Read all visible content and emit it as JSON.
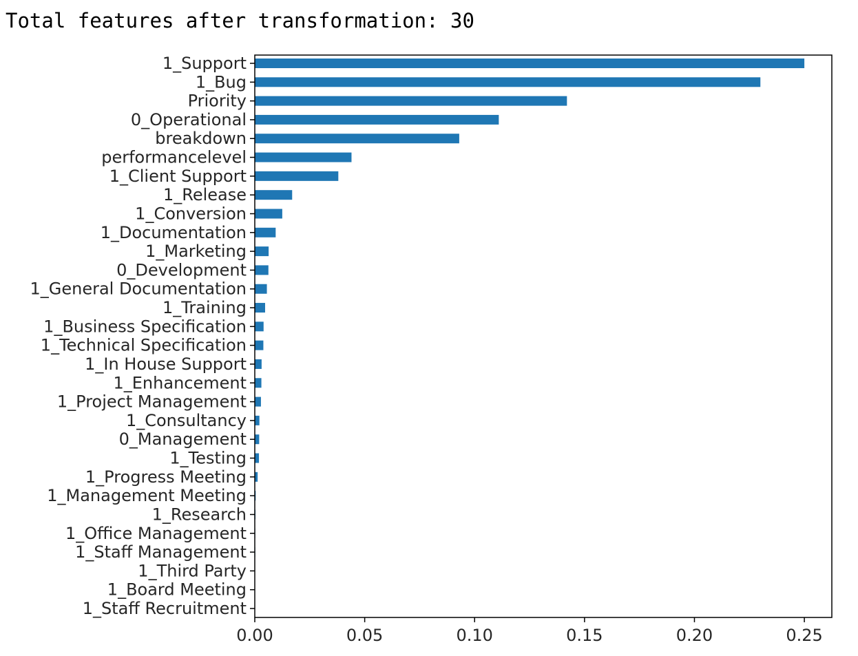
{
  "output": {
    "text": "Total features after transformation: 30"
  },
  "chart_data": {
    "type": "bar",
    "orientation": "horizontal",
    "categories": [
      "1_Support",
      "1_Bug",
      "Priority",
      "0_Operational",
      "breakdown",
      "performancelevel",
      "1_Client Support",
      "1_Release",
      "1_Conversion",
      "1_Documentation",
      "1_Marketing",
      "0_Development",
      "1_General Documentation",
      "1_Training",
      "1_Business Specification",
      "1_Technical Specification",
      "1_In House Support",
      "1_Enhancement",
      "1_Project Management",
      "1_Consultancy",
      "0_Management",
      "1_Testing",
      "1_Progress Meeting",
      "1_Management Meeting",
      "1_Research",
      "1_Office Management",
      "1_Staff Management",
      "1_Third Party",
      "1_Board Meeting",
      "1_Staff Recruitment"
    ],
    "values": [
      0.25,
      0.23,
      0.142,
      0.111,
      0.093,
      0.044,
      0.038,
      0.017,
      0.0125,
      0.0095,
      0.0063,
      0.0062,
      0.0055,
      0.0047,
      0.004,
      0.0039,
      0.0031,
      0.003,
      0.0028,
      0.0021,
      0.002,
      0.0019,
      0.0013,
      0.0004,
      0.0003,
      0.0002,
      0.0002,
      0.0001,
      0.0001,
      0.0001
    ],
    "xlim": [
      0.0,
      0.2625
    ],
    "xticks": [
      0.0,
      0.05,
      0.1,
      0.15,
      0.2,
      0.25
    ],
    "xtick_labels": [
      "0.00",
      "0.05",
      "0.10",
      "0.15",
      "0.20",
      "0.25"
    ],
    "title": "",
    "xlabel": "",
    "ylabel": "",
    "grid": false,
    "bar_color": "#1f77b4"
  }
}
